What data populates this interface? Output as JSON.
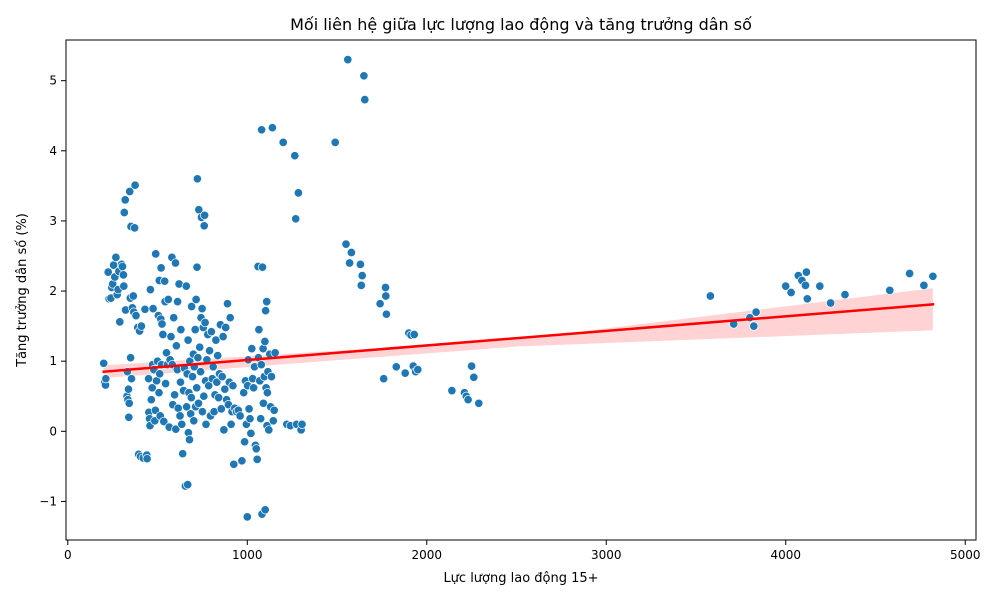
{
  "chart_data": {
    "type": "scatter",
    "title": "Mối liên hệ giữa lực lượng lao động và tăng trưởng dân số",
    "xlabel": "Lực lượng lao động 15+",
    "ylabel": "Tăng trưởng dân số (%)",
    "xlim": [
      -10,
      5060
    ],
    "ylim": [
      -1.55,
      5.58
    ],
    "xticks": [
      0,
      1000,
      2000,
      3000,
      4000,
      5000
    ],
    "xtick_labels": [
      "0",
      "1000",
      "2000",
      "3000",
      "4000",
      "5000"
    ],
    "yticks": [
      -1,
      0,
      1,
      2,
      3,
      4,
      5
    ],
    "ytick_labels": [
      "−1",
      "0",
      "1",
      "2",
      "3",
      "4",
      "5"
    ],
    "grid": false,
    "regression": {
      "x_start": 200,
      "y_start": 0.85,
      "x_end": 4820,
      "y_end": 1.81,
      "ci_lower_start": 0.76,
      "ci_upper_start": 0.94,
      "ci_lower_mid": 1.21,
      "ci_upper_mid": 1.31,
      "x_mid": 2500,
      "ci_lower_end": 1.44,
      "ci_upper_end": 2.04
    },
    "colors": {
      "point": "#1f77b4",
      "line": "#ff0000",
      "band": "#ffc8c8",
      "edge": "#ffffff"
    },
    "series": [
      {
        "points": [
          [
            200,
            0.97
          ],
          [
            205,
            0.7
          ],
          [
            210,
            0.66
          ],
          [
            212,
            0.75
          ],
          [
            225,
            2.27
          ],
          [
            230,
            1.89
          ],
          [
            240,
            1.9
          ],
          [
            245,
            2.05
          ],
          [
            250,
            2.1
          ],
          [
            255,
            2.37
          ],
          [
            262,
            2.2
          ],
          [
            268,
            2.48
          ],
          [
            275,
            1.95
          ],
          [
            280,
            2.02
          ],
          [
            285,
            2.28
          ],
          [
            290,
            1.56
          ],
          [
            300,
            2.38
          ],
          [
            305,
            2.35
          ],
          [
            310,
            2.23
          ],
          [
            312,
            2.07
          ],
          [
            315,
            3.12
          ],
          [
            320,
            3.3
          ],
          [
            322,
            1.73
          ],
          [
            330,
            0.5
          ],
          [
            332,
            0.85
          ],
          [
            335,
            0.45
          ],
          [
            338,
            0.6
          ],
          [
            340,
            0.2
          ],
          [
            342,
            0.4
          ],
          [
            345,
            3.42
          ],
          [
            348,
            1.9
          ],
          [
            350,
            1.05
          ],
          [
            352,
            2.92
          ],
          [
            355,
            0.75
          ],
          [
            360,
            1.76
          ],
          [
            365,
            1.93
          ],
          [
            368,
            1.7
          ],
          [
            372,
            2.9
          ],
          [
            375,
            3.51
          ],
          [
            380,
            1.65
          ],
          [
            390,
            1.48
          ],
          [
            395,
            -0.33
          ],
          [
            400,
            1.43
          ],
          [
            405,
            -0.36
          ],
          [
            410,
            1.5
          ],
          [
            420,
            -0.38
          ],
          [
            430,
            1.74
          ],
          [
            440,
            -0.34
          ],
          [
            442,
            -0.39
          ],
          [
            450,
            0.75
          ],
          [
            452,
            0.27
          ],
          [
            455,
            0.18
          ],
          [
            458,
            0.08
          ],
          [
            460,
            2.02
          ],
          [
            465,
            0.45
          ],
          [
            470,
            0.62
          ],
          [
            472,
            0.95
          ],
          [
            475,
            1.75
          ],
          [
            480,
            0.88
          ],
          [
            485,
            0.15
          ],
          [
            488,
            0.3
          ],
          [
            490,
            2.53
          ],
          [
            495,
            0.72
          ],
          [
            500,
            1.0
          ],
          [
            505,
            1.65
          ],
          [
            508,
            0.55
          ],
          [
            510,
            2.15
          ],
          [
            512,
            0.82
          ],
          [
            515,
            0.22
          ],
          [
            518,
            1.6
          ],
          [
            520,
            2.33
          ],
          [
            522,
            0.95
          ],
          [
            525,
            1.53
          ],
          [
            530,
            1.38
          ],
          [
            535,
            0.14
          ],
          [
            540,
            2.14
          ],
          [
            542,
            1.85
          ],
          [
            545,
            0.68
          ],
          [
            550,
            1.12
          ],
          [
            555,
            0.95
          ],
          [
            560,
            1.88
          ],
          [
            565,
            0.06
          ],
          [
            570,
            1.02
          ],
          [
            575,
            1.35
          ],
          [
            580,
            2.48
          ],
          [
            582,
            0.95
          ],
          [
            585,
            0.38
          ],
          [
            590,
            1.62
          ],
          [
            595,
            0.52
          ],
          [
            600,
            2.4
          ],
          [
            602,
            0.03
          ],
          [
            605,
            1.22
          ],
          [
            610,
            0.88
          ],
          [
            612,
            1.85
          ],
          [
            615,
            0.33
          ],
          [
            620,
            2.1
          ],
          [
            625,
            0.22
          ],
          [
            628,
            0.7
          ],
          [
            630,
            1.45
          ],
          [
            635,
            0.1
          ],
          [
            640,
            -0.32
          ],
          [
            645,
            0.58
          ],
          [
            650,
            0.9
          ],
          [
            655,
            -0.78
          ],
          [
            660,
            2.07
          ],
          [
            662,
            0.35
          ],
          [
            665,
            0.82
          ],
          [
            668,
            -0.76
          ],
          [
            670,
            1.3
          ],
          [
            672,
            -0.02
          ],
          [
            675,
            0.55
          ],
          [
            678,
            -0.12
          ],
          [
            680,
            1.0
          ],
          [
            685,
            0.25
          ],
          [
            688,
            0.48
          ],
          [
            690,
            1.78
          ],
          [
            695,
            0.78
          ],
          [
            700,
            1.1
          ],
          [
            702,
            0.15
          ],
          [
            705,
            0.92
          ],
          [
            710,
            1.45
          ],
          [
            712,
            0.35
          ],
          [
            715,
            1.88
          ],
          [
            718,
            0.62
          ],
          [
            720,
            2.34
          ],
          [
            722,
            3.6
          ],
          [
            725,
            1.05
          ],
          [
            728,
            0.4
          ],
          [
            730,
            3.16
          ],
          [
            735,
            1.2
          ],
          [
            740,
            0.85
          ],
          [
            742,
            1.62
          ],
          [
            745,
            3.05
          ],
          [
            748,
            1.75
          ],
          [
            750,
            0.28
          ],
          [
            755,
            1.48
          ],
          [
            758,
            0.5
          ],
          [
            760,
            2.93
          ],
          [
            762,
            3.08
          ],
          [
            765,
            1.55
          ],
          [
            768,
            0.72
          ],
          [
            770,
            0.1
          ],
          [
            775,
            1.02
          ],
          [
            780,
            1.38
          ],
          [
            785,
            0.65
          ],
          [
            790,
            1.15
          ],
          [
            795,
            0.22
          ],
          [
            800,
            1.42
          ],
          [
            805,
            0.75
          ],
          [
            810,
            0.92
          ],
          [
            815,
            0.28
          ],
          [
            820,
            0.52
          ],
          [
            825,
            1.3
          ],
          [
            830,
            0.7
          ],
          [
            835,
            1.08
          ],
          [
            840,
            0.48
          ],
          [
            845,
            0.82
          ],
          [
            850,
            1.52
          ],
          [
            855,
            0.32
          ],
          [
            860,
            0.78
          ],
          [
            865,
            1.35
          ],
          [
            870,
            0.02
          ],
          [
            875,
            0.6
          ],
          [
            880,
            1.48
          ],
          [
            885,
            0.45
          ],
          [
            890,
            1.82
          ],
          [
            895,
            0.38
          ],
          [
            900,
            0.7
          ],
          [
            905,
            1.62
          ],
          [
            910,
            0.1
          ],
          [
            915,
            0.28
          ],
          [
            920,
            0.65
          ],
          [
            925,
            -0.47
          ],
          [
            930,
            0.33
          ],
          [
            940,
            0.28
          ],
          [
            950,
            0.3
          ],
          [
            960,
            0.22
          ],
          [
            970,
            -0.42
          ],
          [
            980,
            0.55
          ],
          [
            985,
            -0.15
          ],
          [
            990,
            0.72
          ],
          [
            995,
            0.1
          ],
          [
            1000,
            -1.22
          ],
          [
            1002,
            0.65
          ],
          [
            1005,
            1.02
          ],
          [
            1010,
            0.32
          ],
          [
            1015,
            0.18
          ],
          [
            1020,
            -0.03
          ],
          [
            1025,
            1.18
          ],
          [
            1030,
            0.75
          ],
          [
            1035,
            0.62
          ],
          [
            1040,
            0.92
          ],
          [
            1045,
            -0.2
          ],
          [
            1050,
            -0.25
          ],
          [
            1055,
            -0.4
          ],
          [
            1060,
            2.35
          ],
          [
            1062,
            1.05
          ],
          [
            1065,
            1.45
          ],
          [
            1070,
            0.72
          ],
          [
            1075,
            0.18
          ],
          [
            1078,
            0.95
          ],
          [
            1080,
            4.3
          ],
          [
            1082,
            -1.18
          ],
          [
            1085,
            2.34
          ],
          [
            1088,
            1.18
          ],
          [
            1090,
            0.4
          ],
          [
            1095,
            0.78
          ],
          [
            1098,
            1.28
          ],
          [
            1100,
            -1.12
          ],
          [
            1102,
            1.72
          ],
          [
            1105,
            0.62
          ],
          [
            1108,
            1.85
          ],
          [
            1110,
            0.08
          ],
          [
            1112,
            0.55
          ],
          [
            1115,
            0.85
          ],
          [
            1120,
            0.02
          ],
          [
            1125,
            1.1
          ],
          [
            1130,
            0.35
          ],
          [
            1135,
            0.78
          ],
          [
            1140,
            4.33
          ],
          [
            1145,
            0.15
          ],
          [
            1150,
            0.3
          ],
          [
            1155,
            1.12
          ],
          [
            1200,
            4.12
          ],
          [
            1220,
            0.1
          ],
          [
            1240,
            0.08
          ],
          [
            1265,
            3.93
          ],
          [
            1270,
            3.03
          ],
          [
            1275,
            0.1
          ],
          [
            1285,
            3.4
          ],
          [
            1300,
            0.02
          ],
          [
            1305,
            0.1
          ],
          [
            1490,
            4.12
          ],
          [
            1550,
            2.67
          ],
          [
            1560,
            5.3
          ],
          [
            1570,
            2.4
          ],
          [
            1580,
            2.55
          ],
          [
            1630,
            2.38
          ],
          [
            1635,
            2.08
          ],
          [
            1640,
            2.22
          ],
          [
            1650,
            5.07
          ],
          [
            1655,
            4.73
          ],
          [
            1740,
            1.82
          ],
          [
            1760,
            0.75
          ],
          [
            1770,
            2.05
          ],
          [
            1772,
            1.93
          ],
          [
            1775,
            1.67
          ],
          [
            1830,
            0.92
          ],
          [
            1880,
            0.83
          ],
          [
            1900,
            1.4
          ],
          [
            1912,
            1.37
          ],
          [
            1925,
            0.93
          ],
          [
            1930,
            1.38
          ],
          [
            1938,
            0.85
          ],
          [
            1950,
            0.88
          ],
          [
            2140,
            0.58
          ],
          [
            2210,
            0.55
          ],
          [
            2220,
            0.5
          ],
          [
            2230,
            0.45
          ],
          [
            2250,
            0.93
          ],
          [
            2262,
            0.77
          ],
          [
            2290,
            0.4
          ],
          [
            3580,
            1.93
          ],
          [
            3710,
            1.53
          ],
          [
            3800,
            1.62
          ],
          [
            3822,
            1.5
          ],
          [
            3835,
            1.7
          ],
          [
            4000,
            2.07
          ],
          [
            4030,
            1.98
          ],
          [
            4070,
            2.22
          ],
          [
            4090,
            2.15
          ],
          [
            4110,
            2.08
          ],
          [
            4115,
            2.27
          ],
          [
            4120,
            1.89
          ],
          [
            4190,
            2.07
          ],
          [
            4250,
            1.83
          ],
          [
            4330,
            1.95
          ],
          [
            4580,
            2.01
          ],
          [
            4690,
            2.25
          ],
          [
            4770,
            2.08
          ],
          [
            4820,
            2.21
          ]
        ]
      }
    ]
  }
}
